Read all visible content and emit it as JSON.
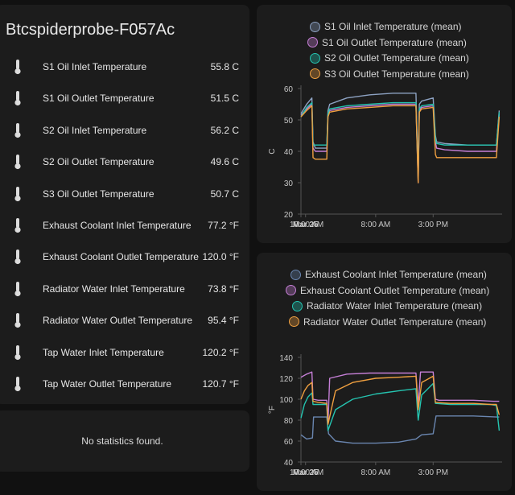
{
  "device_title": "Btcspiderprobe-F057Ac",
  "entities": [
    {
      "name": "S1 Oil Inlet Temperature",
      "value": "55.8 C"
    },
    {
      "name": "S1 Oil Outlet Temperature",
      "value": "51.5 C"
    },
    {
      "name": "S2 Oil Inlet Temperature",
      "value": "56.2 C"
    },
    {
      "name": "S2 Oil Outlet Temperature",
      "value": "49.6 C"
    },
    {
      "name": "S3 Oil Outlet Temperature",
      "value": "50.7 C"
    },
    {
      "name": "Exhaust Coolant Inlet Temperature",
      "value": "77.2 °F"
    },
    {
      "name": "Exhaust Coolant Outlet Temperature",
      "value": "120.0 °F"
    },
    {
      "name": "Radiator Water Inlet Temperature",
      "value": "73.8 °F"
    },
    {
      "name": "Radiator Water Outlet Temperature",
      "value": "95.4 °F"
    },
    {
      "name": "Tap Water Inlet Temperature",
      "value": "120.2 °F"
    },
    {
      "name": "Tap Water Outlet Temperature",
      "value": "120.7 °F"
    }
  ],
  "entity_icon": "thermometer-icon",
  "statistics_message": "No statistics found.",
  "chart_data": [
    {
      "type": "line",
      "ylabel": "C",
      "ylim": [
        20,
        60
      ],
      "y_ticks": [
        "20",
        "30",
        "40",
        "50",
        "60"
      ],
      "x_ticks": [
        "10:00 AM",
        "Mar 25",
        "8:00 AM",
        "3:00 PM"
      ],
      "x_range_hours": [
        0,
        35
      ],
      "x_tick_hours": [
        0,
        0.8,
        13,
        23
      ],
      "legend_position": "top",
      "series": [
        {
          "name": "S1 Oil Inlet Temperature (mean)",
          "color": "#8da2c2",
          "x": [
            0,
            1,
            1.9,
            2.1,
            2.5,
            3,
            4.5,
            4.7,
            5,
            8,
            12,
            16,
            20,
            20.4,
            20.6,
            21,
            23,
            23.4,
            23.6,
            25,
            29,
            33,
            34,
            34.5
          ],
          "y": [
            52,
            55,
            57,
            43,
            41,
            41,
            41,
            53,
            55,
            57,
            58,
            58.5,
            58.5,
            33,
            55,
            56,
            57,
            45,
            43,
            42.5,
            42,
            42,
            42,
            53
          ]
        },
        {
          "name": "S1 Oil Outlet Temperature (mean)",
          "color": "#c57fd6",
          "x": [
            0,
            1,
            1.9,
            2.1,
            2.5,
            3,
            4.5,
            4.7,
            5,
            8,
            12,
            16,
            20,
            20.4,
            20.6,
            21,
            23,
            23.4,
            23.6,
            25,
            29,
            33,
            34,
            34.5
          ],
          "y": [
            51.5,
            53.5,
            55,
            41,
            40,
            40,
            40,
            52,
            53,
            54,
            54.5,
            55,
            55,
            30,
            53,
            54,
            54.5,
            43,
            41,
            40.5,
            40,
            40,
            40,
            52
          ]
        },
        {
          "name": "S2 Oil Outlet Temperature (mean)",
          "color": "#25c4b0",
          "x": [
            0,
            1,
            1.9,
            2.1,
            2.5,
            3,
            4.5,
            4.7,
            5,
            8,
            12,
            16,
            20,
            20.4,
            20.6,
            21,
            23,
            23.4,
            23.6,
            25,
            29,
            33,
            34,
            34.5
          ],
          "y": [
            51,
            54,
            55.5,
            42,
            42,
            42,
            42,
            52,
            53.5,
            54.5,
            55,
            55.5,
            55.5,
            31,
            53.5,
            54.5,
            55,
            44,
            42.5,
            42,
            42,
            42,
            42,
            52.5
          ]
        },
        {
          "name": "S3 Oil Outlet Temperature (mean)",
          "color": "#f0a040",
          "x": [
            0,
            1,
            1.9,
            2.1,
            2.5,
            3,
            4.5,
            4.7,
            5,
            8,
            12,
            16,
            20,
            20.4,
            20.6,
            21,
            23,
            23.4,
            23.6,
            25,
            29,
            33,
            34,
            34.5
          ],
          "y": [
            51,
            53,
            54.5,
            38,
            37.5,
            37.5,
            37.5,
            51,
            52.5,
            53.5,
            54,
            54.5,
            54.5,
            30,
            52.5,
            53.5,
            54,
            39,
            38,
            38,
            38,
            38,
            38,
            51
          ]
        }
      ]
    },
    {
      "type": "line",
      "ylabel": "°F",
      "ylim": [
        40,
        140
      ],
      "y_ticks": [
        "40",
        "60",
        "80",
        "100",
        "120",
        "140"
      ],
      "x_ticks": [
        "10:00 AM",
        "Mar 25",
        "8:00 AM",
        "3:00 PM"
      ],
      "x_range_hours": [
        0,
        35
      ],
      "x_tick_hours": [
        0,
        0.8,
        13,
        23
      ],
      "legend_position": "top",
      "series": [
        {
          "name": "Exhaust Coolant Inlet Temperature (mean)",
          "color": "#6a86b0",
          "x": [
            0,
            1,
            2,
            2.2,
            4.5,
            4.8,
            6,
            9,
            13,
            17,
            20,
            21,
            23,
            23.5,
            25,
            30,
            34,
            34.5
          ],
          "y": [
            66,
            62,
            63,
            83,
            83,
            67,
            60,
            58,
            58,
            59,
            62,
            66,
            67,
            84,
            84,
            84,
            83,
            83
          ]
        },
        {
          "name": "Exhaust Coolant Outlet Temperature (mean)",
          "color": "#c57fd6",
          "x": [
            0,
            1,
            1.9,
            2.1,
            3,
            4.5,
            4.7,
            5,
            8,
            12,
            16,
            20,
            20.4,
            20.8,
            23,
            23.4,
            24,
            30,
            33.5,
            34,
            34.5
          ],
          "y": [
            121,
            124,
            126,
            100,
            99,
            99,
            77,
            120,
            124,
            125,
            125,
            125,
            94,
            126,
            126,
            100,
            99,
            99,
            98,
            98,
            98
          ]
        },
        {
          "name": "Radiator Water Inlet Temperature (mean)",
          "color": "#25c4b0",
          "x": [
            0,
            0.6,
            1.2,
            1.9,
            2.1,
            3,
            4.5,
            4.7,
            6,
            9,
            13,
            17,
            20,
            20.4,
            21,
            23,
            23.4,
            26,
            30,
            33,
            34,
            34.5
          ],
          "y": [
            82,
            95,
            102,
            106,
            95,
            95,
            95,
            70,
            90,
            100,
            105,
            108,
            110,
            80,
            104,
            115,
            96,
            95,
            95,
            95,
            94,
            70
          ]
        },
        {
          "name": "Radiator Water Outlet Temperature (mean)",
          "color": "#f0a040",
          "x": [
            0,
            0.6,
            1.2,
            1.9,
            2.1,
            3,
            4.5,
            4.7,
            6,
            9,
            13,
            17,
            20,
            20.4,
            21,
            23,
            23.4,
            26,
            30,
            33,
            34,
            34.5
          ],
          "y": [
            100,
            108,
            113,
            116,
            98,
            97,
            96,
            76,
            108,
            116,
            120,
            121,
            122,
            90,
            116,
            122,
            97,
            96,
            96,
            95,
            95,
            85
          ]
        }
      ]
    }
  ]
}
